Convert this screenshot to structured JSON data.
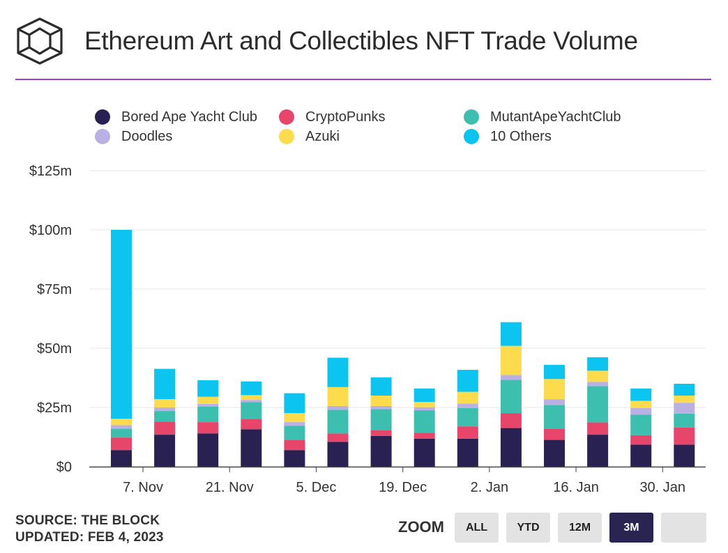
{
  "header": {
    "title": "Ethereum Art and Collectibles NFT Trade Volume"
  },
  "colors": {
    "accent_rule": "#9b3fd6",
    "bored_ape": "#2a2153",
    "cryptopunks": "#e8456b",
    "mutant": "#3dbfaf",
    "doodles": "#b9b1e4",
    "azuki": "#fcdc4d",
    "others": "#0bc4f0",
    "zoom_active": "#2a2453"
  },
  "legend": [
    {
      "label": "Bored Ape Yacht Club",
      "color": "#2a2153"
    },
    {
      "label": "CryptoPunks",
      "color": "#e8456b"
    },
    {
      "label": "MutantApeYachtClub",
      "color": "#3dbfaf"
    },
    {
      "label": "Doodles",
      "color": "#b9b1e4"
    },
    {
      "label": "Azuki",
      "color": "#fcdc4d"
    },
    {
      "label": "10 Others",
      "color": "#0bc4f0"
    }
  ],
  "chart_data": {
    "type": "bar",
    "stacked": true,
    "title": "Ethereum Art and Collectibles NFT Trade Volume",
    "xlabel": "",
    "ylabel": "",
    "ylim": [
      0,
      125
    ],
    "yticks": [
      0,
      25,
      50,
      75,
      100,
      125
    ],
    "ytick_labels": [
      "$0",
      "$25m",
      "$50m",
      "$75m",
      "$100m",
      "$125m"
    ],
    "x_tick_labels": [
      "7. Nov",
      "21. Nov",
      "5. Dec",
      "19. Dec",
      "2. Jan",
      "16. Jan",
      "30. Jan"
    ],
    "x_tick_after_bar": [
      0,
      2,
      4,
      6,
      8,
      10,
      12
    ],
    "grid": true,
    "legend_position": "top",
    "series": [
      {
        "name": "Bored Ape Yacht Club",
        "color": "#2a2153",
        "values": [
          7,
          13.5,
          14,
          15.8,
          7,
          10.5,
          13,
          11.8,
          11.8,
          16.3,
          11.3,
          13.5,
          9.3,
          9.3
        ]
      },
      {
        "name": "CryptoPunks",
        "color": "#e8456b",
        "values": [
          5.3,
          5.5,
          4.8,
          4.4,
          4.3,
          3.5,
          2.3,
          2.5,
          5.2,
          6.2,
          4.7,
          5.2,
          4,
          7.2
        ]
      },
      {
        "name": "MutantApeYachtClub",
        "color": "#3dbfaf",
        "values": [
          3.7,
          4.5,
          6.5,
          7,
          6,
          10,
          9,
          9.5,
          7.8,
          14.2,
          10,
          15.3,
          8.7,
          5.9
        ]
      },
      {
        "name": "Doodles",
        "color": "#b9b1e4",
        "values": [
          1.5,
          1.5,
          1.2,
          1,
          1.5,
          1.6,
          1.3,
          1.3,
          1.8,
          2,
          2.5,
          1.8,
          2.8,
          4.6
        ]
      },
      {
        "name": "Azuki",
        "color": "#fcdc4d",
        "values": [
          2.7,
          3.5,
          3,
          2,
          3.8,
          8,
          4.4,
          2.2,
          5,
          12.3,
          8.5,
          4.7,
          3,
          3
        ]
      },
      {
        "name": "10 Others",
        "color": "#0bc4f0",
        "values": [
          79.8,
          12.8,
          7,
          5.8,
          8.4,
          12.4,
          7.7,
          5.7,
          9.3,
          10,
          6,
          5.7,
          5.2,
          5
        ]
      }
    ]
  },
  "footer": {
    "source": "SOURCE: THE BLOCK",
    "updated": "UPDATED: FEB 4, 2023"
  },
  "zoom": {
    "label": "ZOOM",
    "buttons": [
      {
        "label": "ALL",
        "active": false
      },
      {
        "label": "YTD",
        "active": false
      },
      {
        "label": "12M",
        "active": false
      },
      {
        "label": "3M",
        "active": true
      },
      {
        "label": "",
        "active": false
      }
    ]
  }
}
